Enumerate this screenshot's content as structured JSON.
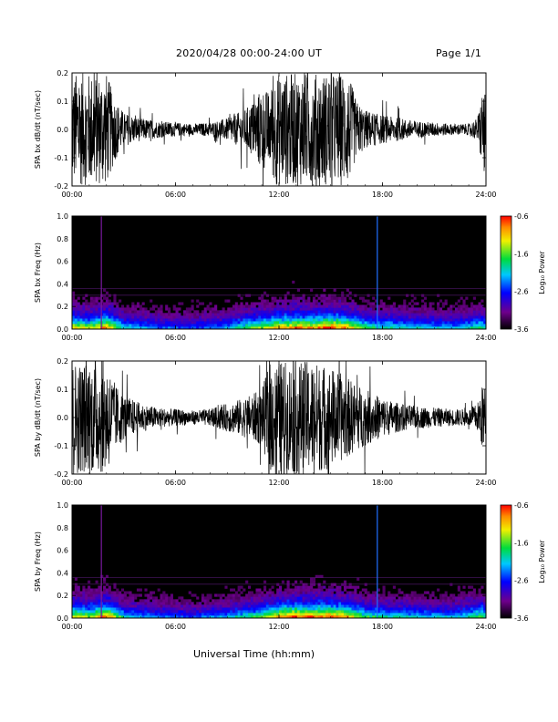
{
  "header": {
    "title": "2020/04/28  00:00-24:00 UT",
    "page": "Page 1/1"
  },
  "xaxis_title": "Universal Time (hh:mm)",
  "chart_data": [
    {
      "type": "line",
      "ylabel": "SPA bx dB/dt (nT/sec)",
      "xlim": [
        0,
        24
      ],
      "ylim": [
        -0.2,
        0.2
      ],
      "xticks": [
        "00:00",
        "06:00",
        "12:00",
        "18:00",
        "24:00"
      ],
      "yticks": [
        "-0.2",
        "-0.1",
        "0.0",
        "0.1",
        "0.2"
      ],
      "envelope": {
        "hours": [
          0,
          0.3,
          0.8,
          1.2,
          1.6,
          2.0,
          2.5,
          3.0,
          4.0,
          5.0,
          6.0,
          7.0,
          8.0,
          9.0,
          10.0,
          10.5,
          11.0,
          11.5,
          11.7,
          12.0,
          13.0,
          14.0,
          15.0,
          16.0,
          16.5,
          17.0,
          18.0,
          19.0,
          20.0,
          21.0,
          22.0,
          23.0,
          23.5,
          23.9,
          24.0
        ],
        "amp": [
          0.2,
          0.2,
          0.2,
          0.2,
          0.2,
          0.2,
          0.11,
          0.06,
          0.04,
          0.03,
          0.025,
          0.02,
          0.025,
          0.04,
          0.07,
          0.1,
          0.15,
          0.13,
          0.2,
          0.2,
          0.2,
          0.2,
          0.2,
          0.2,
          0.1,
          0.07,
          0.05,
          0.04,
          0.03,
          0.025,
          0.02,
          0.02,
          0.04,
          0.18,
          0.06
        ]
      }
    },
    {
      "type": "heatmap",
      "ylabel": "SPA bx Freq (Hz)",
      "xlim": [
        0,
        24
      ],
      "ylim": [
        0,
        1.0
      ],
      "xticks": [
        "00:00",
        "06:00",
        "12:00",
        "18:00",
        "24:00"
      ],
      "yticks": [
        "0.0",
        "0.2",
        "0.4",
        "0.6",
        "0.8",
        "1.0"
      ],
      "colorbar": {
        "label": "Log₁₀ Power",
        "range": [
          -3.6,
          -0.6
        ],
        "ticks": [
          "-0.6",
          "-1.6",
          "-2.6",
          "-3.6"
        ]
      },
      "activity": {
        "hours": [
          0,
          1,
          2,
          3,
          5,
          7,
          9,
          10,
          11,
          12,
          13,
          14,
          15,
          16,
          17,
          18,
          20,
          22,
          23.8,
          24
        ],
        "level": [
          0.8,
          0.7,
          0.9,
          0.5,
          0.4,
          0.35,
          0.45,
          0.6,
          0.7,
          0.85,
          0.9,
          0.85,
          0.95,
          0.85,
          0.6,
          0.55,
          0.5,
          0.45,
          0.6,
          0.5
        ]
      },
      "bright_lines_hours": [
        1.7,
        17.7
      ]
    },
    {
      "type": "line",
      "ylabel": "SPA by dB/dt (nT/sec)",
      "xlim": [
        0,
        24
      ],
      "ylim": [
        -0.2,
        0.2
      ],
      "xticks": [
        "00:00",
        "06:00",
        "12:00",
        "18:00",
        "24:00"
      ],
      "yticks": [
        "-0.2",
        "-0.1",
        "0.0",
        "0.1",
        "0.2"
      ],
      "envelope": {
        "hours": [
          0,
          0.3,
          0.8,
          1.2,
          1.6,
          2.0,
          2.5,
          3.0,
          4.0,
          5.0,
          6.0,
          7.0,
          8.0,
          9.0,
          10.0,
          11.0,
          11.5,
          12.0,
          13.0,
          14.0,
          15.0,
          16.0,
          17.0,
          18.0,
          19.0,
          20.0,
          21.0,
          22.0,
          23.0,
          23.5,
          23.9,
          24.0
        ],
        "amp": [
          0.2,
          0.2,
          0.2,
          0.2,
          0.2,
          0.2,
          0.12,
          0.08,
          0.05,
          0.035,
          0.03,
          0.025,
          0.03,
          0.05,
          0.07,
          0.1,
          0.2,
          0.2,
          0.2,
          0.2,
          0.18,
          0.14,
          0.1,
          0.07,
          0.05,
          0.04,
          0.035,
          0.03,
          0.03,
          0.05,
          0.14,
          0.05
        ]
      }
    },
    {
      "type": "heatmap",
      "ylabel": "SPA by Freq (Hz)",
      "xlim": [
        0,
        24
      ],
      "ylim": [
        0,
        1.0
      ],
      "xticks": [
        "00:00",
        "06:00",
        "12:00",
        "18:00",
        "24:00"
      ],
      "yticks": [
        "0.0",
        "0.2",
        "0.4",
        "0.6",
        "0.8",
        "1.0"
      ],
      "colorbar": {
        "label": "Log₁₀ Power",
        "range": [
          -3.6,
          -0.6
        ],
        "ticks": [
          "-0.6",
          "-1.6",
          "-2.6",
          "-3.6"
        ]
      },
      "activity": {
        "hours": [
          0,
          1,
          2,
          3,
          5,
          7,
          9,
          10,
          11,
          12,
          13,
          14,
          15,
          16,
          17,
          18,
          20,
          22,
          23.8,
          24
        ],
        "level": [
          0.8,
          0.7,
          0.95,
          0.5,
          0.4,
          0.35,
          0.45,
          0.55,
          0.65,
          0.85,
          0.95,
          0.9,
          0.95,
          0.85,
          0.6,
          0.55,
          0.5,
          0.45,
          0.65,
          0.5
        ]
      },
      "bright_lines_hours": [
        1.7,
        17.7
      ]
    }
  ]
}
